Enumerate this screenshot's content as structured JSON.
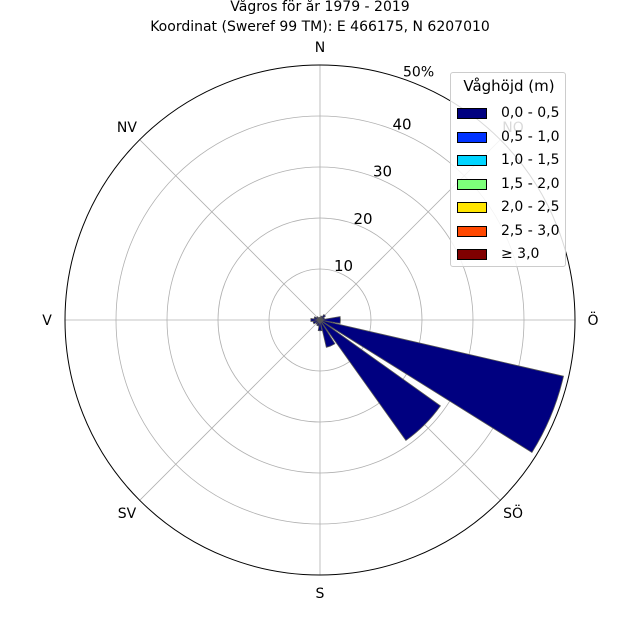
{
  "title": "Vågros för år 1979 - 2019",
  "subtitle": "Koordinat (Sweref 99 TM): E 466175, N 6207010",
  "chart_data": {
    "type": "polar-bar",
    "rmax": 50,
    "radial_ticks": [
      10,
      20,
      30,
      40
    ],
    "radial_max_label": "50%",
    "directions": [
      {
        "angle": 0,
        "label": "N"
      },
      {
        "angle": 45,
        "label": "NO"
      },
      {
        "angle": 90,
        "label": "Ö"
      },
      {
        "angle": 135,
        "label": "SÖ"
      },
      {
        "angle": 180,
        "label": "S"
      },
      {
        "angle": 225,
        "label": "SV"
      },
      {
        "angle": 270,
        "label": "V"
      },
      {
        "angle": 315,
        "label": "NV"
      }
    ],
    "sectors": [
      {
        "center": 0,
        "value": 0.5
      },
      {
        "center": 22.5,
        "value": 0.8
      },
      {
        "center": 45,
        "value": 1.3
      },
      {
        "center": 67.5,
        "value": 0.9
      },
      {
        "center": 90,
        "value": 4.0
      },
      {
        "center": 112.5,
        "value": 49.0
      },
      {
        "center": 135,
        "value": 29.0
      },
      {
        "center": 157.5,
        "value": 5.5
      },
      {
        "center": 180,
        "value": 2.1
      },
      {
        "center": 202.5,
        "value": 1.2
      },
      {
        "center": 225,
        "value": 1.0
      },
      {
        "center": 247.5,
        "value": 1.4
      },
      {
        "center": 270,
        "value": 1.8
      },
      {
        "center": 292.5,
        "value": 1.2
      },
      {
        "center": 315,
        "value": 0.8
      },
      {
        "center": 337.5,
        "value": 0.5
      }
    ],
    "sector_width_deg": 19,
    "bar_color": "#000080",
    "bar_edge": "#555555",
    "grid": true,
    "legend_placement": "top-right",
    "legend": {
      "title": "Våghöjd (m)",
      "items": [
        {
          "label": "0,0 - 0,5",
          "color": "#000080"
        },
        {
          "label": "0,5 - 1,0",
          "color": "#0033ff"
        },
        {
          "label": "1,0 - 1,5",
          "color": "#00d4ff"
        },
        {
          "label": "1,5 - 2,0",
          "color": "#7dff7a"
        },
        {
          "label": "2,0 - 2,5",
          "color": "#ffe500"
        },
        {
          "label": "2,5 - 3,0",
          "color": "#ff4800"
        },
        {
          "label": "≥ 3,0",
          "color": "#800000"
        }
      ]
    }
  }
}
